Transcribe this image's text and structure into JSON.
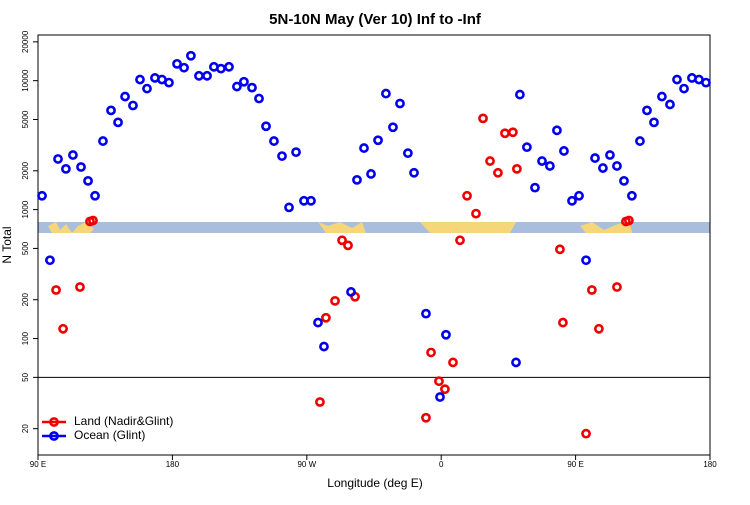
{
  "chart_data": {
    "type": "scatter",
    "title": "5N-10N May (Ver 10)   Inf to -Inf",
    "x_label": "Longitude (deg E)",
    "y_label": "N Total",
    "xlim": [
      90,
      540
    ],
    "xticks": [
      {
        "value": 90,
        "label": "90 E"
      },
      180,
      {
        "value": 270,
        "label": "90 W"
      },
      {
        "value": 360,
        "label": "0"
      },
      {
        "value": 450,
        "label": "90 E"
      },
      {
        "value": 540,
        "label": "180"
      }
    ],
    "ylim": [
      12.5,
      22600
    ],
    "log_y": true,
    "yticks": [
      20,
      50,
      100,
      200,
      500,
      1000,
      2000,
      5000,
      10000,
      20000
    ],
    "hline": 50,
    "legend": "bottom-left",
    "series": [
      {
        "name": "Land (Nadir&Glint)",
        "color": "#ee0000",
        "x": [
          102.1,
          106.8,
          118.1,
          124.8,
          126.8,
          278.8,
          282.8,
          288.9,
          293.6,
          297.6,
          302.3,
          349.8,
          353.2,
          358.5,
          362.5,
          367.9,
          372.6,
          377.3,
          383.3,
          388,
          392.7,
          398,
          402.7,
          408,
          410.7,
          439.5,
          441.5,
          457,
          460.9,
          465.6,
          477.7,
          483.7,
          485.7
        ],
        "values": [
          238,
          119,
          251,
          809,
          823,
          32.2,
          145,
          196,
          578,
          528,
          211,
          24.3,
          78,
          46.7,
          40.5,
          65.3,
          578,
          1280,
          931,
          5100,
          2380,
          1930,
          3910,
          3980,
          2070,
          492,
          133,
          18.3,
          238,
          119,
          251,
          809,
          823
        ]
      },
      {
        "name": "Ocean (Glint)",
        "color": "#0000ee",
        "x": [
          92.7,
          98,
          103.4,
          108.7,
          113.4,
          118.8,
          123.5,
          128.2,
          133.5,
          138.9,
          143.6,
          148.3,
          153.6,
          158.3,
          163,
          168.3,
          173,
          177.7,
          183.1,
          187.8,
          192.4,
          197.8,
          203.2,
          207.8,
          212.5,
          217.9,
          223.2,
          227.9,
          233.3,
          238,
          242.7,
          248,
          253.4,
          262.8,
          258.1,
          268.1,
          272.8,
          277.5,
          281.5,
          299.6,
          303.6,
          308.3,
          313,
          317.7,
          323,
          327.7,
          332.4,
          337.7,
          341.8,
          349.8,
          363.2,
          359.2,
          410.1,
          412.7,
          417.4,
          422.8,
          427.5,
          432.8,
          437.5,
          442.2,
          447.6,
          452.3,
          457,
          463,
          468.3,
          473,
          477.7,
          482.4,
          487.7,
          493.1,
          497.8,
          502.5,
          507.8,
          513.2,
          517.9,
          522.6,
          527.9,
          532.6,
          537.3
        ],
        "values": [
          1280,
          405,
          2470,
          2070,
          2650,
          2140,
          1670,
          1280,
          3400,
          5880,
          4750,
          7530,
          6420,
          10200,
          8680,
          10500,
          10200,
          9660,
          13500,
          12600,
          15600,
          10900,
          10900,
          12800,
          12400,
          12800,
          9000,
          9810,
          8830,
          7270,
          4430,
          3400,
          2600,
          2790,
          1040,
          1170,
          1170,
          133,
          86.7,
          230,
          1700,
          3000,
          1890,
          3450,
          7940,
          4350,
          6650,
          2740,
          1930,
          156,
          107,
          35.2,
          65.3,
          7800,
          3050,
          1480,
          2380,
          2180,
          4120,
          2850,
          1170,
          1280,
          405,
          2510,
          2100,
          2650,
          2180,
          1670,
          1280,
          3400,
          5880,
          4750,
          7530,
          6540,
          10200,
          8680,
          10500,
          10200,
          9660
        ]
      }
    ]
  }
}
